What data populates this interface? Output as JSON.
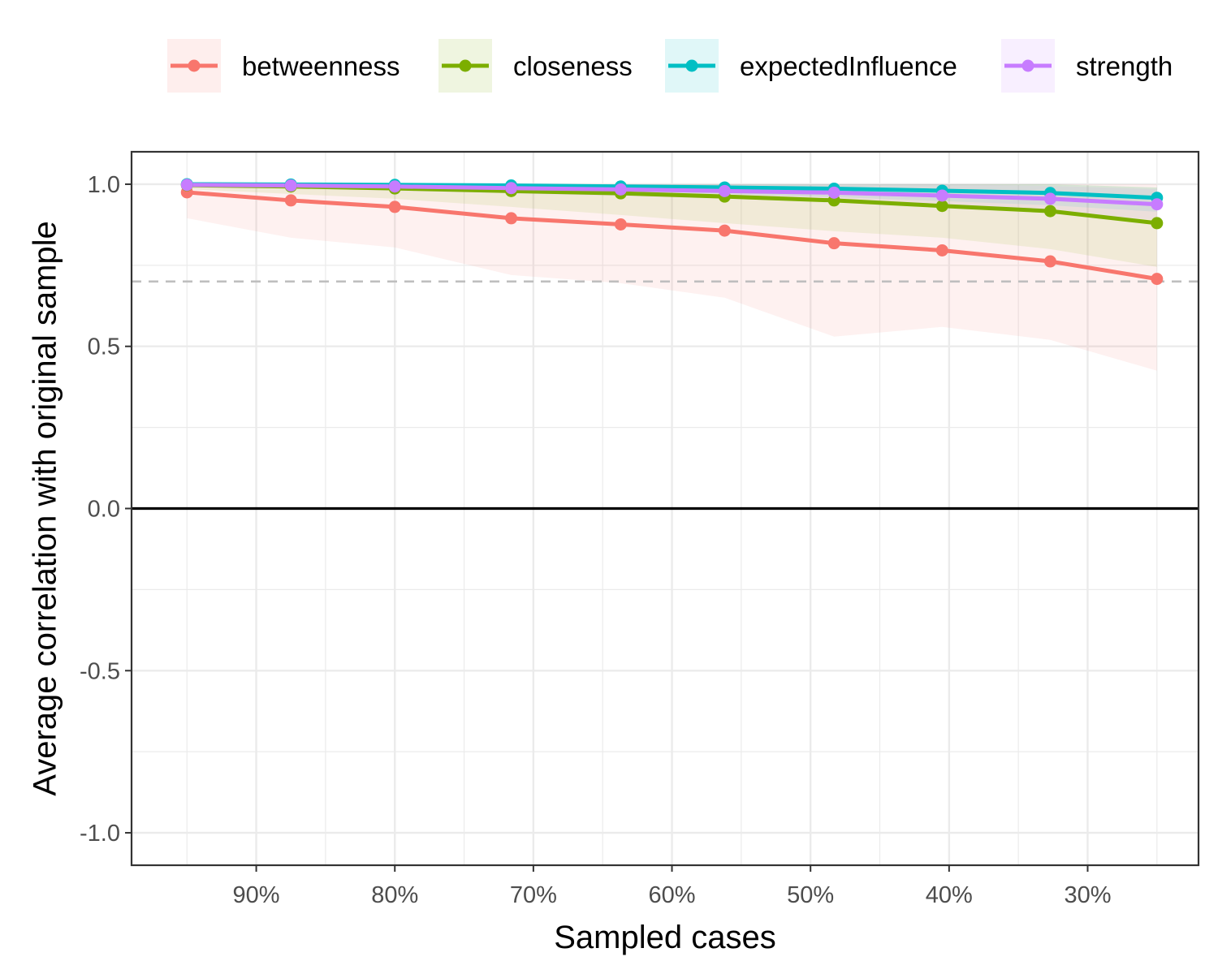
{
  "chart_data": {
    "type": "line",
    "xlabel": "Sampled cases",
    "ylabel": "Average correlation with original sample",
    "x": [
      95,
      87.5,
      80,
      71.6,
      63.7,
      56.2,
      48.3,
      40.5,
      32.7,
      25
    ],
    "xtick_values": [
      90,
      80,
      70,
      60,
      50,
      40,
      30
    ],
    "xtick_labels": [
      "90%",
      "80%",
      "70%",
      "60%",
      "50%",
      "40%",
      "30%"
    ],
    "xlim": [
      99,
      22
    ],
    "ylim": [
      -1.1,
      1.1
    ],
    "ytick_values": [
      1.0,
      0.5,
      0.0,
      -0.5,
      -1.0
    ],
    "ytick_labels": [
      "1.0",
      "0.5",
      "0.0",
      "-0.5",
      "-1.0"
    ],
    "reference_lines": [
      {
        "y": 0.7,
        "style": "dashed",
        "color": "#bebebe"
      },
      {
        "y": 0.0,
        "style": "solid",
        "color": "#000000"
      }
    ],
    "grid": true,
    "legend_position": "top",
    "series": [
      {
        "name": "betweenness",
        "color": "#F8766D",
        "values": [
          0.975,
          0.95,
          0.93,
          0.895,
          0.876,
          0.857,
          0.818,
          0.796,
          0.762,
          0.708
        ],
        "band_lower": [
          0.895,
          0.835,
          0.805,
          0.72,
          0.695,
          0.65,
          0.53,
          0.56,
          0.52,
          0.425
        ],
        "band_upper": [
          1.0,
          1.0,
          1.0,
          1.0,
          1.0,
          1.0,
          1.0,
          1.0,
          1.0,
          1.0
        ]
      },
      {
        "name": "closeness",
        "color": "#7CAE00",
        "values": [
          0.997,
          0.993,
          0.987,
          0.979,
          0.972,
          0.962,
          0.95,
          0.933,
          0.917,
          0.88
        ],
        "band_lower": [
          0.985,
          0.97,
          0.955,
          0.93,
          0.905,
          0.88,
          0.855,
          0.835,
          0.8,
          0.745
        ],
        "band_upper": [
          1.0,
          1.0,
          1.0,
          1.0,
          1.0,
          1.0,
          1.0,
          1.0,
          1.0,
          0.99
        ]
      },
      {
        "name": "expectedInfluence",
        "color": "#00BFC4",
        "values": [
          1.0,
          0.999,
          0.998,
          0.996,
          0.993,
          0.99,
          0.986,
          0.98,
          0.973,
          0.958
        ],
        "band_lower": [
          0.998,
          0.995,
          0.99,
          0.985,
          0.978,
          0.97,
          0.96,
          0.948,
          0.935,
          0.915
        ],
        "band_upper": [
          1.0,
          1.0,
          1.0,
          1.0,
          1.0,
          1.0,
          1.0,
          1.0,
          1.0,
          0.99
        ]
      },
      {
        "name": "strength",
        "color": "#C77CFF",
        "values": [
          0.998,
          0.996,
          0.993,
          0.988,
          0.984,
          0.979,
          0.974,
          0.965,
          0.955,
          0.938
        ],
        "band_lower": [
          0.993,
          0.988,
          0.98,
          0.972,
          0.963,
          0.955,
          0.945,
          0.93,
          0.915,
          0.89
        ],
        "band_upper": [
          1.0,
          1.0,
          1.0,
          1.0,
          1.0,
          1.0,
          1.0,
          1.0,
          0.995,
          0.985
        ]
      }
    ]
  }
}
